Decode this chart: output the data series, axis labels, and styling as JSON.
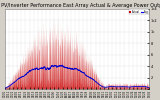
{
  "title": "Solar PV/Inverter Performance East Array Actual & Average Power Output",
  "bg_color": "#d4d0c8",
  "plot_bg": "#ffffff",
  "bar_color": "#cc0000",
  "avg_color_segments": [
    "#0000ff",
    "#00aaff",
    "#ff0000",
    "#ff8800",
    "#ffff00",
    "#00cc00",
    "#ff00ff",
    "#00ffff"
  ],
  "ylim": [
    0,
    1400
  ],
  "ytick_labels": [
    "1k4",
    "1k2",
    "1k",
    "8",
    "6",
    "4",
    "2",
    ""
  ],
  "ytick_vals": [
    1400,
    1200,
    1000,
    800,
    600,
    400,
    200,
    0
  ],
  "num_days": 365,
  "pts_per_day": 5,
  "legend_actual_color": "#cc0000",
  "legend_avg_colors": [
    "#0000ff",
    "#00aaff",
    "#ff0000",
    "#ff8800",
    "#ffff00",
    "#00cc00"
  ],
  "title_fontsize": 3.5,
  "tick_fontsize": 2.5,
  "grid_color": "#aaaaaa",
  "outer_bg": "#d4d0c8"
}
